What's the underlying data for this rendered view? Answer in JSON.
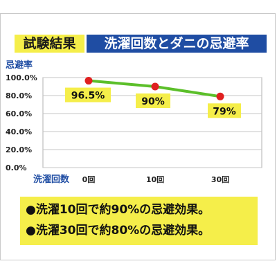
{
  "title": {
    "badge": "試験結果",
    "main": "洗濯回数とダニの忌避率"
  },
  "notes": [
    "●洗濯10回で約90%の忌避効果。",
    "●洗濯30回で約80%の忌避効果。"
  ],
  "colors": {
    "yellow": "#f5ee4a",
    "navy": "#1f4da3",
    "line": "#5cbf2a",
    "marker": "#e02020",
    "axis_label": "#1f4da3"
  },
  "chart_data": {
    "type": "line",
    "ylabel": "忌避率",
    "xlabel": "洗濯回数",
    "ylim": [
      0,
      100
    ],
    "y_ticks": [
      "0.0%",
      "20.0%",
      "40.0%",
      "60.0%",
      "80.0%",
      "100.0%"
    ],
    "y_tick_values": [
      0,
      20,
      40,
      60,
      80,
      100
    ],
    "grid": true,
    "categories": [
      "0回",
      "10回",
      "30回"
    ],
    "values": [
      96.5,
      90,
      79
    ],
    "data_labels": [
      "96.5%",
      "90%",
      "79%"
    ]
  }
}
